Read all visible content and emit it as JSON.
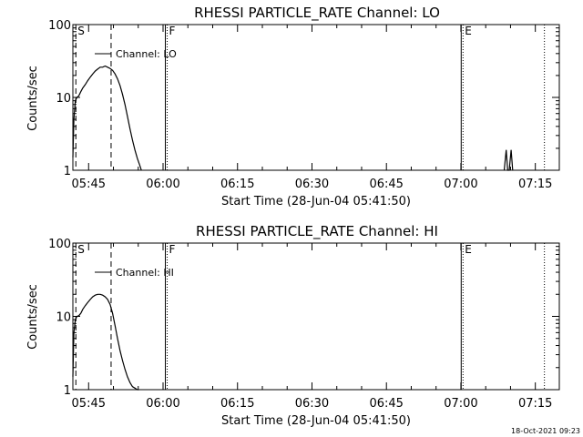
{
  "footer_timestamp": "18-Oct-2021 09:23",
  "chart_data": [
    {
      "type": "line",
      "title": "RHESSI PARTICLE_RATE Channel: LO",
      "xlabel": "Start Time (28-Jun-04 05:41:50)",
      "ylabel": "Counts/sec",
      "yscale": "log",
      "ylim": [
        1,
        100
      ],
      "xlim_minutes": [
        0,
        98
      ],
      "yticks": [
        1,
        10,
        100
      ],
      "yticklabels": [
        "1",
        "10",
        "100"
      ],
      "xticks": [
        3.17,
        18.17,
        33.17,
        48.17,
        63.17,
        78.17,
        93.17
      ],
      "xticklabels": [
        "05:45",
        "06:00",
        "06:15",
        "06:30",
        "06:45",
        "07:00",
        "07:15"
      ],
      "legend": "Channel: LO",
      "legend_position": "top-left",
      "series": [
        {
          "name": "Channel: LO",
          "x": [
            0.0,
            0.2,
            0.5,
            0.8,
            1.2,
            1.6,
            2.0,
            2.5,
            3.0,
            3.5,
            4.0,
            4.5,
            5.0,
            5.5,
            6.0,
            6.5,
            7.0,
            7.5,
            8.0,
            8.5,
            9.0,
            9.5,
            10.0,
            10.5,
            11.0,
            11.5,
            12.0,
            12.5,
            13.0,
            13.5,
            13.8
          ],
          "y": [
            1.5,
            5.0,
            9.0,
            10.0,
            10.5,
            12.0,
            13.5,
            15.0,
            17.0,
            19.0,
            21.0,
            23.0,
            24.5,
            26.0,
            26.0,
            27.0,
            26.0,
            25.0,
            23.5,
            21.0,
            18.0,
            14.5,
            11.0,
            8.0,
            5.5,
            3.7,
            2.6,
            1.9,
            1.45,
            1.15,
            1.0
          ]
        },
        {
          "name": "",
          "x": [
            86.9,
            87.3,
            87.6,
            87.9,
            88.3,
            88.6
          ],
          "y": [
            1.0,
            1.9,
            1.0,
            1.0,
            1.9,
            1.0
          ]
        }
      ],
      "markers": [
        {
          "label": "S",
          "x": 0.6,
          "style": "dashed"
        },
        {
          "label": "",
          "x": 7.7,
          "style": "dashed"
        },
        {
          "label": "F",
          "x": 19.0,
          "style": "dotted"
        },
        {
          "label": "E",
          "x": 78.6,
          "style": "dotted"
        },
        {
          "label": "",
          "x": 95.0,
          "style": "dotted"
        }
      ],
      "grid": false
    },
    {
      "type": "line",
      "title": "RHESSI PARTICLE_RATE Channel: HI",
      "xlabel": "Start Time (28-Jun-04 05:41:50)",
      "ylabel": "Counts/sec",
      "yscale": "log",
      "ylim": [
        1,
        100
      ],
      "xlim_minutes": [
        0,
        98
      ],
      "yticks": [
        1,
        10,
        100
      ],
      "yticklabels": [
        "1",
        "10",
        "100"
      ],
      "xticks": [
        3.17,
        18.17,
        33.17,
        48.17,
        63.17,
        78.17,
        93.17
      ],
      "xticklabels": [
        "05:45",
        "06:00",
        "06:15",
        "06:30",
        "06:45",
        "07:00",
        "07:15"
      ],
      "legend": "Channel: HI",
      "legend_position": "top-left",
      "series": [
        {
          "name": "Channel: HI",
          "x": [
            0.0,
            0.2,
            0.5,
            0.8,
            1.2,
            1.6,
            2.0,
            2.5,
            3.0,
            3.5,
            4.0,
            4.5,
            5.0,
            5.5,
            6.0,
            6.5,
            7.0,
            7.5,
            8.0,
            8.5,
            9.0,
            9.5,
            10.0,
            10.5,
            11.0,
            11.5,
            12.0,
            12.5,
            13.0,
            13.3
          ],
          "y": [
            1.5,
            6.0,
            9.0,
            10.0,
            10.2,
            11.0,
            12.5,
            14.0,
            15.5,
            17.0,
            18.5,
            19.5,
            20.0,
            20.0,
            19.5,
            18.5,
            17.0,
            14.5,
            11.0,
            7.5,
            5.0,
            3.4,
            2.5,
            1.9,
            1.5,
            1.25,
            1.1,
            1.05,
            1.0,
            1.0
          ]
        }
      ],
      "markers": [
        {
          "label": "S",
          "x": 0.6,
          "style": "dashed"
        },
        {
          "label": "",
          "x": 7.7,
          "style": "dashed"
        },
        {
          "label": "F",
          "x": 19.0,
          "style": "dotted"
        },
        {
          "label": "E",
          "x": 78.6,
          "style": "dotted"
        },
        {
          "label": "",
          "x": 95.0,
          "style": "dotted"
        }
      ],
      "grid": false
    }
  ]
}
